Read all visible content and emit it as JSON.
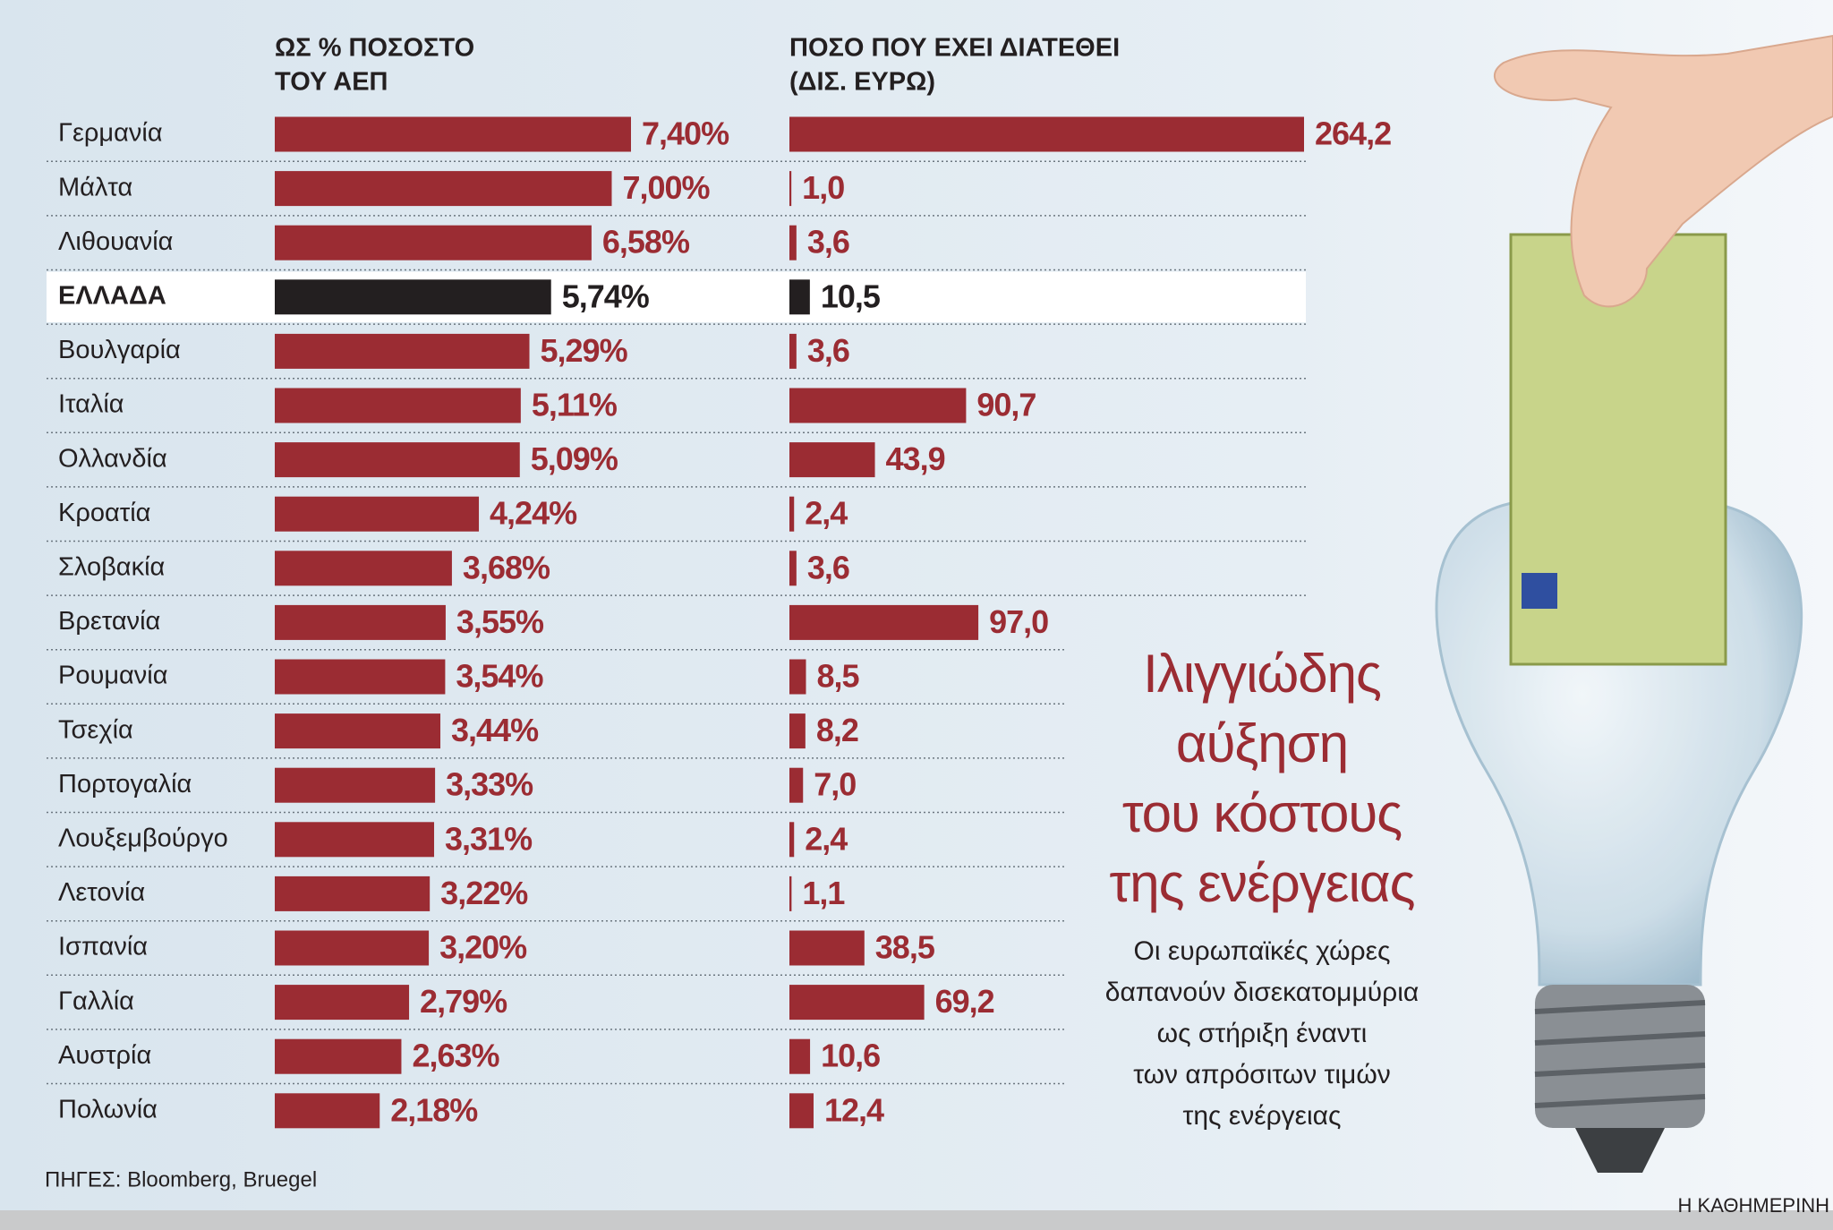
{
  "chart_data": [
    {
      "type": "hbar",
      "title": [
        "ΩΣ % ΠΟΣΟΣΤΟ",
        "ΤΟΥ ΑΕΠ"
      ],
      "categories": [
        "Γερμανία",
        "Μάλτα",
        "Λιθουανία",
        "ΕΛΛΑΔΑ",
        "Βουλγαρία",
        "Ιταλία",
        "Ολλανδία",
        "Κροατία",
        "Σλοβακία",
        "Βρετανία",
        "Ρουμανία",
        "Τσεχία",
        "Πορτογαλία",
        "Λουξεμβούργο",
        "Λετονία",
        "Ισπανία",
        "Γαλλία",
        "Αυστρία",
        "Πολωνία"
      ],
      "values": [
        7.4,
        7.0,
        6.58,
        5.74,
        5.29,
        5.11,
        5.09,
        4.24,
        3.68,
        3.55,
        3.54,
        3.44,
        3.33,
        3.31,
        3.22,
        3.2,
        2.79,
        2.63,
        2.18
      ],
      "value_labels": [
        "7,40%",
        "7,00%",
        "6,58%",
        "5,74%",
        "5,29%",
        "5,11%",
        "5,09%",
        "4,24%",
        "3,68%",
        "3,55%",
        "3,54%",
        "3,44%",
        "3,33%",
        "3,31%",
        "3,22%",
        "3,20%",
        "2,79%",
        "2,63%",
        "2,18%"
      ],
      "xlim": [
        0,
        7.4
      ],
      "color": "#9b2c33",
      "highlight": {
        "index": 3,
        "color": "#231f20"
      }
    },
    {
      "type": "hbar",
      "title": [
        "ΠΟΣΟ ΠΟΥ ΕΧΕΙ ΔΙΑΤΕΘΕΙ",
        "(ΔΙΣ. ΕΥΡΩ)"
      ],
      "values": [
        264.2,
        1.0,
        3.6,
        10.5,
        3.6,
        90.7,
        43.9,
        2.4,
        3.6,
        97.0,
        8.5,
        8.2,
        7.0,
        2.4,
        1.1,
        38.5,
        69.2,
        10.6,
        12.4
      ],
      "value_labels": [
        "264,2",
        "1,0",
        "3,6",
        "10,5",
        "3,6",
        "90,7",
        "43,9",
        "2,4",
        "3,6",
        "97,0",
        "8,5",
        "8,2",
        "7,0",
        "2,4",
        "1,1",
        "38,5",
        "69,2",
        "10,6",
        "12,4"
      ],
      "xlim": [
        0,
        264.2
      ],
      "color": "#9b2c33",
      "highlight": {
        "index": 3,
        "color": "#231f20"
      }
    }
  ],
  "headline": [
    "Ιλιγγιώδης",
    "αύξηση",
    "του κόστους",
    "της ενέργειας"
  ],
  "subheadline": [
    "Οι ευρωπαϊκές χώρες",
    "δαπανούν δισεκατομμύρια",
    "ως στήριξη έναντι",
    "των απρόσιτων τιμών",
    "της ενέργειας"
  ],
  "source": "ΠΗΓΕΣ: Bloomberg, Bruegel",
  "credit": "Η ΚΑΘΗΜΕΡΙΝΗ"
}
